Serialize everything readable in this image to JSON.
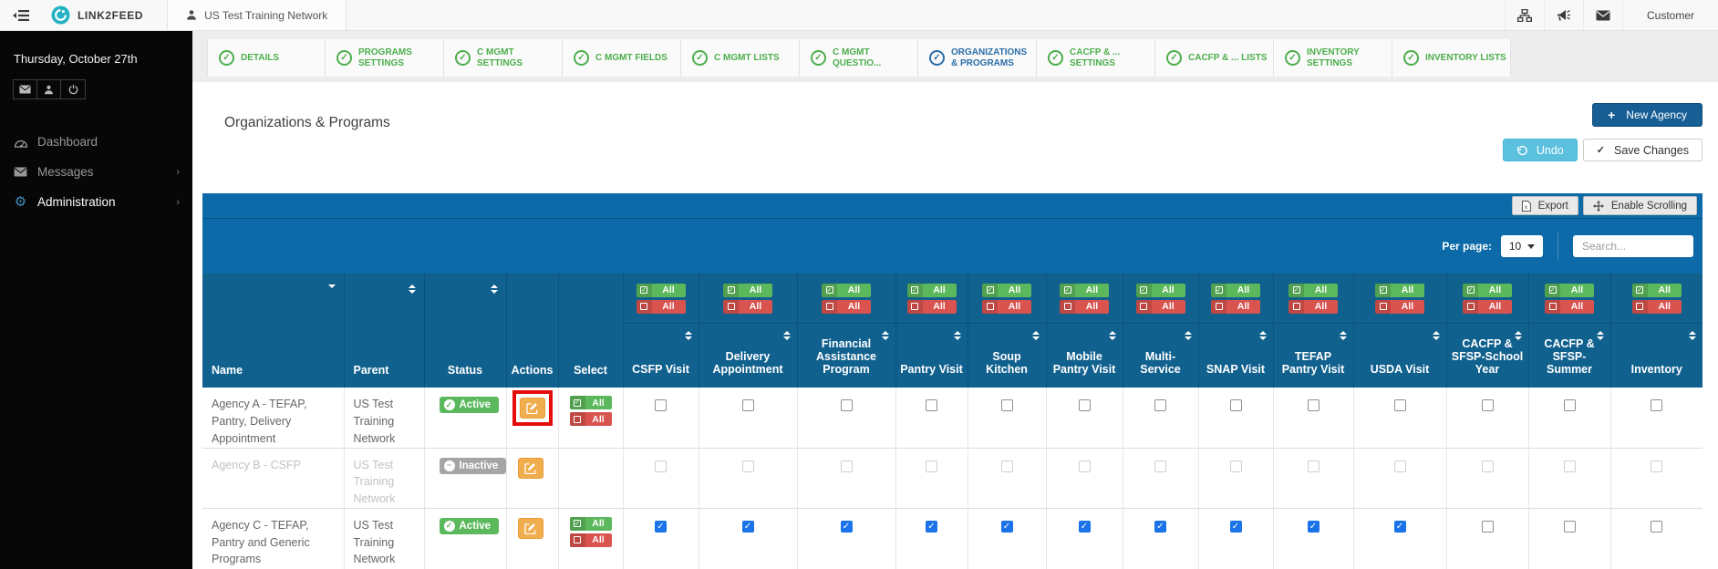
{
  "topbar": {
    "brand": "LINK2FEED",
    "network_tab": "US Test Training Network",
    "user_menu": "Customer"
  },
  "sidebar": {
    "date": "Thursday, October 27th",
    "items": [
      {
        "label": "Dashboard",
        "icon": "dashboard-icon",
        "active": false,
        "has_submenu": false
      },
      {
        "label": "Messages",
        "icon": "envelope-icon",
        "active": false,
        "has_submenu": true
      },
      {
        "label": "Administration",
        "icon": "gears-icon",
        "active": true,
        "has_submenu": true
      }
    ]
  },
  "steps": [
    {
      "label": "DETAILS",
      "state": "done"
    },
    {
      "label": "PROGRAMS SETTINGS",
      "state": "done"
    },
    {
      "label": "C MGMT SETTINGS",
      "state": "done"
    },
    {
      "label": "C MGMT FIELDS",
      "state": "done"
    },
    {
      "label": "C MGMT LISTS",
      "state": "done"
    },
    {
      "label": "C MGMT QUESTIO...",
      "state": "done"
    },
    {
      "label": "ORGANIZATIONS & PROGRAMS",
      "state": "active"
    },
    {
      "label": "CACFP & ... SETTINGS",
      "state": "done"
    },
    {
      "label": "CACFP & ... LISTS",
      "state": "done"
    },
    {
      "label": "INVENTORY SETTINGS",
      "state": "done"
    },
    {
      "label": "INVENTORY LISTS",
      "state": "done"
    }
  ],
  "page": {
    "title": "Organizations & Programs",
    "new_agency_button": "New Agency",
    "undo_button": "Undo",
    "save_changes_button": "Save Changes",
    "export_button": "Export",
    "enable_scrolling_button": "Enable Scrolling",
    "per_page_label": "Per page:",
    "per_page_value": "10",
    "search_placeholder": "Search..."
  },
  "table": {
    "fixed_columns": [
      {
        "label": "Name",
        "sort": "desc"
      },
      {
        "label": "Parent",
        "sort": "both"
      },
      {
        "label": "Status",
        "sort": "both"
      },
      {
        "label": "Actions",
        "sort": "none"
      },
      {
        "label": "Select",
        "sort": "none"
      }
    ],
    "select_all_label": "All",
    "deselect_all_label": "All",
    "program_columns": [
      "CSFP Visit",
      "Delivery Appointment",
      "Financial Assistance Program",
      "Pantry Visit",
      "Soup Kitchen",
      "Mobile Pantry Visit",
      "Multi-Service",
      "SNAP Visit",
      "TEFAP Pantry Visit",
      "USDA Visit",
      "CACFP & SFSP-School Year",
      "CACFP & SFSP-Summer",
      "Inventory"
    ],
    "rows": [
      {
        "name": "Agency A - TEFAP, Pantry, Delivery Appointment",
        "parent": "US Test Training Network",
        "status": "Active",
        "status_type": "active",
        "has_edit": true,
        "edit_highlighted": true,
        "has_select_buttons": true,
        "disabled": false,
        "checks": [
          false,
          false,
          false,
          false,
          false,
          false,
          false,
          false,
          false,
          false,
          false,
          false,
          false
        ]
      },
      {
        "name": "Agency B - CSFP",
        "parent": "US Test Training Network",
        "status": "Inactive",
        "status_type": "inactive",
        "has_edit": true,
        "edit_highlighted": false,
        "has_select_buttons": false,
        "disabled": true,
        "checks": [
          false,
          false,
          false,
          false,
          false,
          false,
          false,
          false,
          false,
          false,
          false,
          false,
          false
        ]
      },
      {
        "name": "Agency C - TEFAP, Pantry and Generic Programs",
        "parent": "US Test Training Network",
        "status": "Active",
        "status_type": "active",
        "has_edit": true,
        "edit_highlighted": false,
        "has_select_buttons": true,
        "disabled": false,
        "checks": [
          true,
          true,
          true,
          true,
          true,
          true,
          true,
          true,
          true,
          true,
          false,
          false,
          false
        ]
      }
    ]
  },
  "colors": {
    "toolbar_blue": "#0b6aa7",
    "header_blue": "#11618f",
    "success_green": "#5cb85c",
    "danger_red": "#d9534f",
    "warning_orange": "#f0ad4e",
    "info_blue": "#5bc0de",
    "dark_button_blue": "#175e94",
    "highlight_red": "#e60c0c",
    "checked_checkbox_blue": "#1a73e8",
    "step_green": "#4cae4c",
    "step_active_blue": "#2a6da8"
  }
}
